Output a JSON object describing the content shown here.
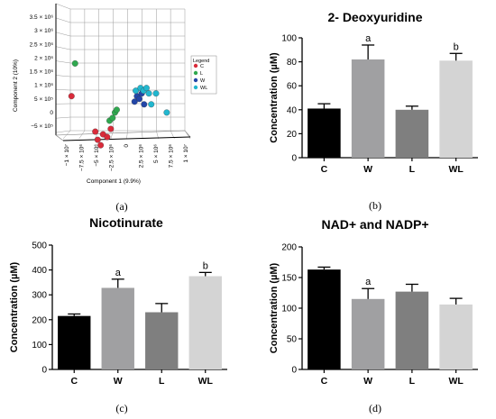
{
  "panel_labels": [
    "(a)",
    "(b)",
    "(c)",
    "(d)"
  ],
  "chart_data": [
    {
      "type": "scatter",
      "panel": "(a)",
      "xlabel": "Component 1 (9.9%)",
      "ylabel": "Component 2 (10%)",
      "y_ticks": [
        "3.5 × 10⁶",
        "3 × 10⁶",
        "2.5 × 10⁶",
        "2 × 10⁶",
        "1.5 × 10⁶",
        "1 × 10⁶",
        "5 × 10⁵",
        "0",
        "−5 × 10⁵"
      ],
      "y_values": [
        3500000,
        3000000,
        2500000,
        2000000,
        1500000,
        1000000,
        500000,
        0,
        -500000
      ],
      "x_ticks": [
        "−1 × 10⁷",
        "−7.5 × 10⁶",
        "−5 × 10⁶",
        "−2.5 × 10⁶",
        "0",
        "2.5 × 10⁶",
        "5 × 10⁶",
        "7.5 × 10⁶",
        "1 × 10⁷"
      ],
      "x_values": [
        -10000000,
        -7500000,
        -5000000,
        -2500000,
        0,
        2500000,
        5000000,
        7500000,
        10000000
      ],
      "legend_title": "Legend",
      "legend_placement": "right",
      "series": [
        {
          "name": "C",
          "color": "#d92b3a",
          "points": [
            [
              -9200000,
              600000
            ],
            [
              -5200000,
              -700000
            ],
            [
              -4800000,
              -1000000
            ],
            [
              -4300000,
              -1200000
            ],
            [
              -3900000,
              -800000
            ],
            [
              -3200000,
              -900000
            ],
            [
              -2600000,
              -600000
            ]
          ]
        },
        {
          "name": "L",
          "color": "#2fa84f",
          "points": [
            [
              -8600000,
              1800000
            ],
            [
              -2800000,
              -300000
            ],
            [
              -2300000,
              -200000
            ],
            [
              -1900000,
              0
            ],
            [
              -1600000,
              100000
            ]
          ]
        },
        {
          "name": "W",
          "color": "#2346a8",
          "points": [
            [
              1400000,
              400000
            ],
            [
              1800000,
              600000
            ],
            [
              2200000,
              500000
            ],
            [
              2600000,
              700000
            ],
            [
              3000000,
              300000
            ]
          ]
        },
        {
          "name": "WL",
          "color": "#22b7cf",
          "points": [
            [
              1600000,
              800000
            ],
            [
              2400000,
              900000
            ],
            [
              2900000,
              800000
            ],
            [
              3400000,
              900000
            ],
            [
              3800000,
              700000
            ],
            [
              4200000,
              300000
            ],
            [
              5000000,
              700000
            ],
            [
              6800000,
              0
            ]
          ]
        }
      ]
    },
    {
      "type": "bar",
      "panel": "(b)",
      "title": "2- Deoxyuridine",
      "ylabel": "Concentration (µM)",
      "categories": [
        "C",
        "W",
        "L",
        "WL"
      ],
      "values": [
        41,
        82,
        40,
        81
      ],
      "errors": [
        4,
        12,
        3,
        6
      ],
      "significance": [
        "",
        "a",
        "",
        "b"
      ],
      "colors": [
        "#000000",
        "#a0a0a2",
        "#7f7f7f",
        "#d4d4d4"
      ],
      "ylim": [
        0,
        100
      ],
      "yticks": [
        0,
        20,
        40,
        60,
        80,
        100
      ]
    },
    {
      "type": "bar",
      "panel": "(c)",
      "title": "Nicotinurate",
      "ylabel": "Concentration (µM)",
      "categories": [
        "C",
        "W",
        "L",
        "WL"
      ],
      "values": [
        215,
        328,
        230,
        375
      ],
      "errors": [
        8,
        35,
        35,
        15
      ],
      "significance": [
        "",
        "a",
        "",
        "b"
      ],
      "colors": [
        "#000000",
        "#a0a0a2",
        "#7f7f7f",
        "#d4d4d4"
      ],
      "ylim": [
        0,
        500
      ],
      "yticks": [
        0,
        100,
        200,
        300,
        400,
        500
      ]
    },
    {
      "type": "bar",
      "panel": "(d)",
      "title": "NAD+ and NADP+",
      "ylabel": "Concentration (µM)",
      "categories": [
        "C",
        "W",
        "L",
        "WL"
      ],
      "values": [
        163,
        115,
        127,
        106
      ],
      "errors": [
        4,
        17,
        12,
        10
      ],
      "significance": [
        "",
        "a",
        "",
        ""
      ],
      "colors": [
        "#000000",
        "#a0a0a2",
        "#7f7f7f",
        "#d4d4d4"
      ],
      "ylim": [
        0,
        200
      ],
      "yticks": [
        0,
        50,
        100,
        150,
        200
      ]
    }
  ]
}
